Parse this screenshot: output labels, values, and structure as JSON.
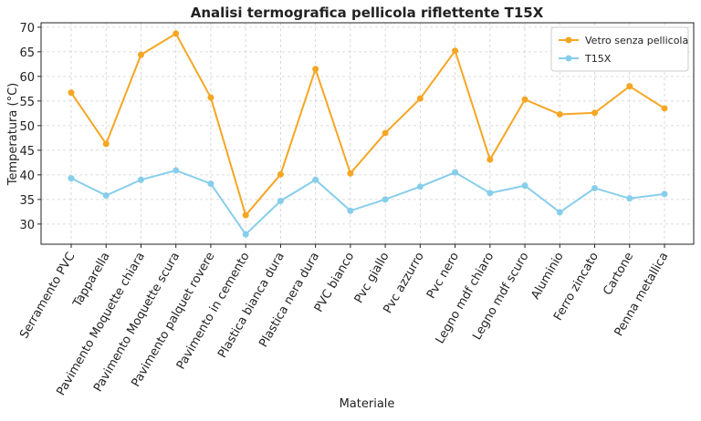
{
  "chart_data": {
    "type": "line",
    "title": "Analisi termografica pellicola riflettente T15X",
    "x_label": "Materiale",
    "y_label": "Temperatura (°C)",
    "categories": [
      "Serramento PVC",
      "Tapparella",
      "Pavimento Moquette chiara",
      "Pavimento Moquette scura",
      "Pavimento palquet rovere",
      "Pavimento in cemento",
      "Plastica bianca dura",
      "Plastica nera dura",
      "PVC bianco",
      "Pvc giallo",
      "Pvc azzurro",
      "Pvc nero",
      "Legno mdf chiaro",
      "Legno mdf scuro",
      "Aluminio",
      "Ferro zincato",
      "Cartone",
      "Penna metallica"
    ],
    "series": [
      {
        "name": "Vetro senza pellicola",
        "color": "#f5a623",
        "values": [
          56.7,
          46.3,
          64.4,
          68.7,
          55.7,
          31.8,
          40.1,
          61.5,
          40.3,
          48.5,
          55.5,
          65.2,
          43.1,
          55.3,
          52.3,
          52.6,
          58.0,
          53.5
        ]
      },
      {
        "name": "T15X",
        "color": "#87ceeb",
        "values": [
          39.3,
          35.8,
          39.0,
          40.9,
          38.2,
          27.9,
          34.7,
          39.0,
          32.7,
          35.0,
          37.6,
          40.5,
          36.3,
          37.8,
          32.4,
          37.3,
          35.2,
          36.1
        ]
      }
    ],
    "ylim": [
      25.9,
      70.9
    ],
    "yticks": [
      30,
      35,
      40,
      45,
      50,
      55,
      60,
      65,
      70
    ],
    "grid": true,
    "legend": "upper right"
  }
}
